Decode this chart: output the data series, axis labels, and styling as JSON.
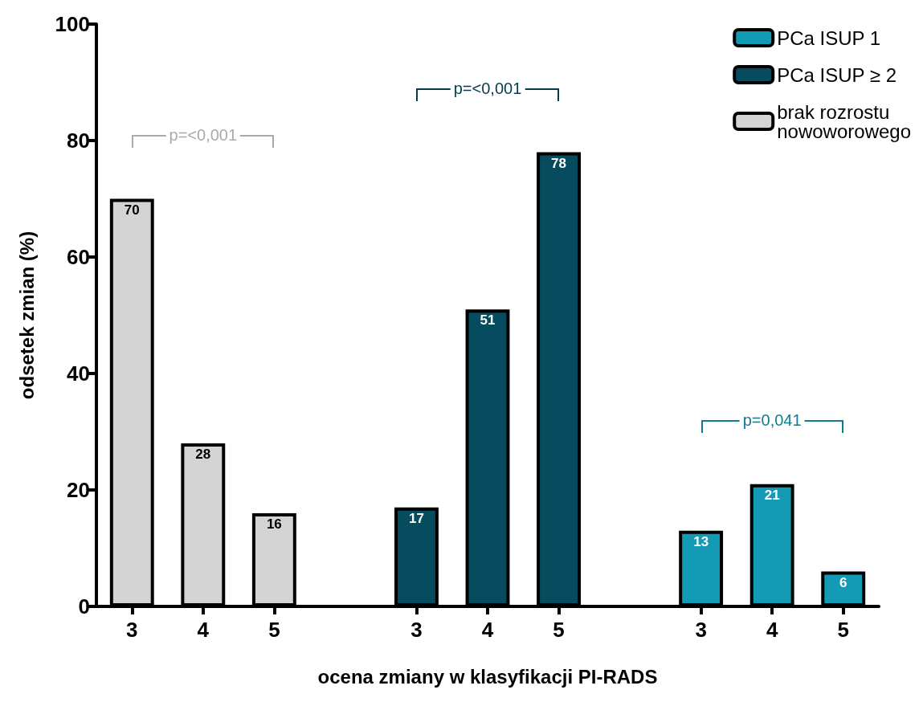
{
  "chart_data": {
    "type": "bar",
    "xlabel": "ocena zmiany w klasyfikacji PI-RADS",
    "ylabel": "odsetek zmian (%)",
    "categories": [
      "3",
      "4",
      "5",
      null,
      "3",
      "4",
      "5",
      null,
      "3",
      "4",
      "5"
    ],
    "series": [
      {
        "name": "PCa ISUP 1",
        "color": "#139bb5",
        "values": [
          null,
          null,
          null,
          null,
          null,
          null,
          null,
          null,
          13,
          21,
          6
        ]
      },
      {
        "name": "PCa ISUP ≥ 2",
        "color": "#064b5e",
        "values": [
          null,
          null,
          null,
          null,
          17,
          51,
          78,
          null,
          null,
          null,
          null
        ]
      },
      {
        "name": "brak rozrostu nowoworowego",
        "color": "#d4d4d4",
        "values": [
          70,
          28,
          16,
          null,
          null,
          null,
          null,
          null,
          null,
          null,
          null
        ]
      }
    ],
    "ylim": [
      0,
      100
    ],
    "yticks": [
      0,
      20,
      40,
      60,
      80,
      100
    ],
    "grid": false,
    "legend": "top right",
    "data_labels": true,
    "annotations": [
      "p=<0,001",
      "p=<0,001",
      "p=0,041"
    ]
  }
}
